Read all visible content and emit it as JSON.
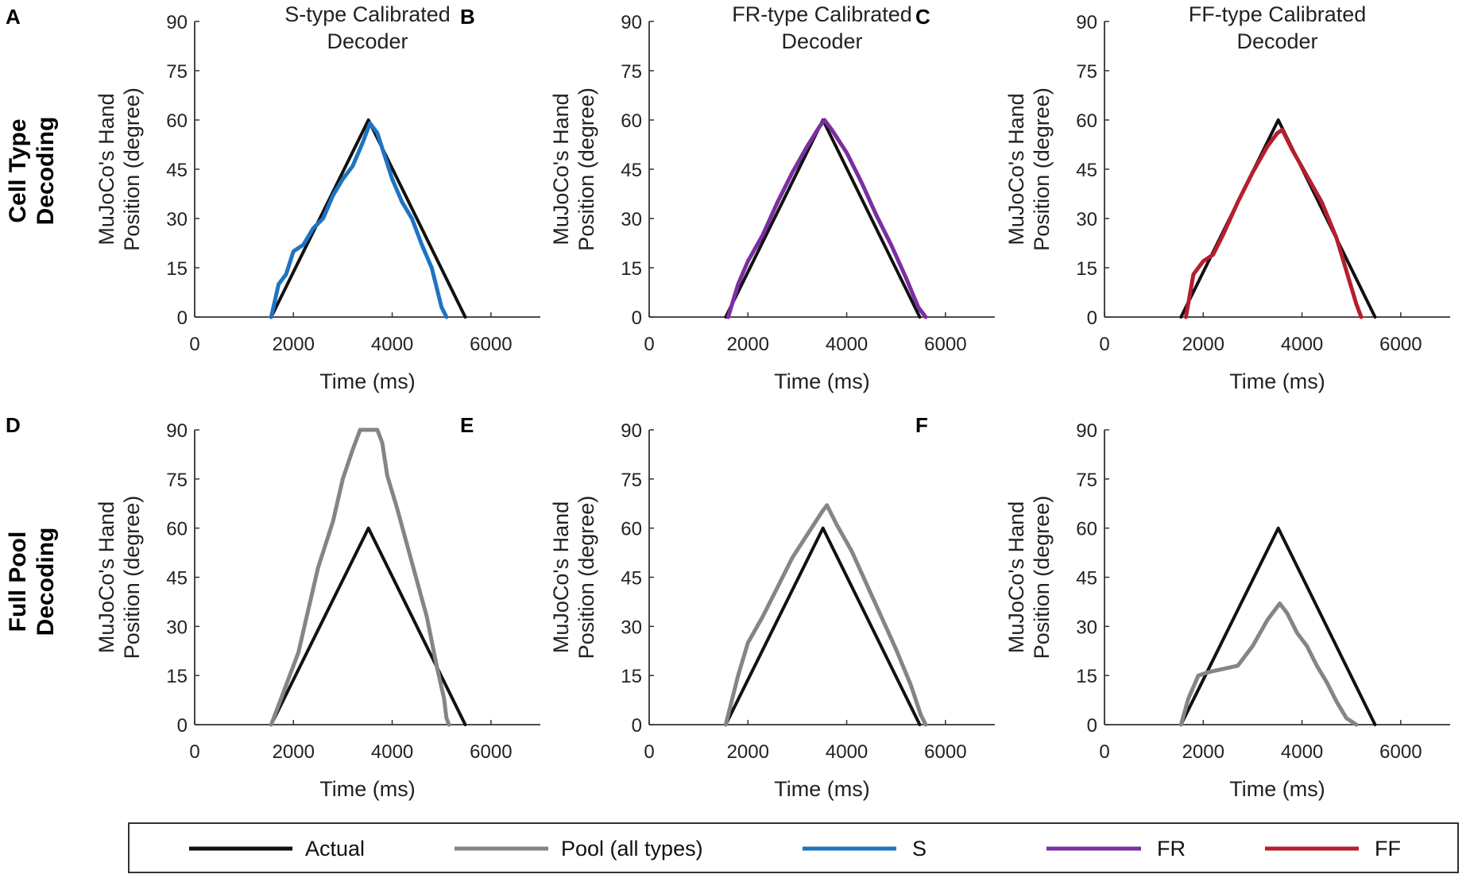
{
  "row_labels": [
    {
      "line1": "Cell Type",
      "line2": "Decoding"
    },
    {
      "line1": "Full Pool",
      "line2": "Decoding"
    }
  ],
  "legend": [
    {
      "name": "Actual",
      "color": "#111111"
    },
    {
      "name": "Pool (all types)",
      "color": "#858585"
    },
    {
      "name": "S",
      "color": "#1f74c2"
    },
    {
      "name": "FR",
      "color": "#7b2fa3"
    },
    {
      "name": "FF",
      "color": "#b51f2e"
    }
  ],
  "chart_data": [
    {
      "panel": "A",
      "type": "line",
      "title": [
        "S-type Calibrated",
        "Decoder"
      ],
      "xlabel": "Time (ms)",
      "ylabel": [
        "MuJoCo's Hand",
        "Position (degree)"
      ],
      "xlim": [
        0,
        7000
      ],
      "ylim": [
        0,
        90
      ],
      "xticks": [
        0,
        2000,
        4000,
        6000
      ],
      "yticks": [
        0,
        15,
        30,
        45,
        60,
        75,
        90
      ],
      "series": [
        {
          "name": "Actual",
          "color": "#111111",
          "x": [
            1550,
            3520,
            5480
          ],
          "y": [
            0,
            60,
            0
          ]
        },
        {
          "name": "S",
          "color": "#1f74c2",
          "x": [
            1550,
            1700,
            1850,
            2000,
            2200,
            2400,
            2600,
            2800,
            3000,
            3200,
            3400,
            3550,
            3700,
            3850,
            4000,
            4200,
            4400,
            4600,
            4800,
            5000,
            5100
          ],
          "y": [
            0,
            10,
            13,
            20,
            22,
            27,
            30,
            37,
            42,
            46,
            53,
            59,
            56,
            49,
            42,
            35,
            30,
            22,
            15,
            3,
            0
          ]
        }
      ]
    },
    {
      "panel": "B",
      "type": "line",
      "title": [
        "FR-type Calibrated",
        "Decoder"
      ],
      "xlabel": "Time (ms)",
      "ylabel": [
        "MuJoCo's Hand",
        "Position (degree)"
      ],
      "xlim": [
        0,
        7000
      ],
      "ylim": [
        0,
        90
      ],
      "xticks": [
        0,
        2000,
        4000,
        6000
      ],
      "yticks": [
        0,
        15,
        30,
        45,
        60,
        75,
        90
      ],
      "series": [
        {
          "name": "Actual",
          "color": "#111111",
          "x": [
            1550,
            3520,
            5480
          ],
          "y": [
            0,
            60,
            0
          ]
        },
        {
          "name": "FR",
          "color": "#7b2fa3",
          "x": [
            1600,
            1800,
            2000,
            2300,
            2600,
            2900,
            3200,
            3450,
            3550,
            3700,
            4000,
            4300,
            4600,
            4900,
            5200,
            5450,
            5600
          ],
          "y": [
            0,
            10,
            17,
            25,
            35,
            44,
            52,
            58,
            60,
            57,
            50,
            41,
            31,
            22,
            12,
            3,
            0
          ]
        }
      ]
    },
    {
      "panel": "C",
      "type": "line",
      "title": [
        "FF-type Calibrated",
        "Decoder"
      ],
      "xlabel": "Time (ms)",
      "ylabel": [
        "MuJoCo's Hand",
        "Position (degree)"
      ],
      "xlim": [
        0,
        7000
      ],
      "ylim": [
        0,
        90
      ],
      "xticks": [
        0,
        2000,
        4000,
        6000
      ],
      "yticks": [
        0,
        15,
        30,
        45,
        60,
        75,
        90
      ],
      "series": [
        {
          "name": "Actual",
          "color": "#111111",
          "x": [
            1550,
            3520,
            5480
          ],
          "y": [
            0,
            60,
            0
          ]
        },
        {
          "name": "FF",
          "color": "#b51f2e",
          "x": [
            1650,
            1800,
            2000,
            2200,
            2400,
            2700,
            3000,
            3300,
            3500,
            3600,
            3800,
            4100,
            4400,
            4700,
            4900,
            5100,
            5200
          ],
          "y": [
            0,
            13,
            17,
            19,
            25,
            35,
            44,
            52,
            56,
            57,
            51,
            43,
            35,
            24,
            14,
            4,
            0
          ]
        }
      ]
    },
    {
      "panel": "D",
      "type": "line",
      "title": [],
      "xlabel": "Time (ms)",
      "ylabel": [
        "MuJoCo's Hand",
        "Position (degree)"
      ],
      "xlim": [
        0,
        7000
      ],
      "ylim": [
        0,
        90
      ],
      "xticks": [
        0,
        2000,
        4000,
        6000
      ],
      "yticks": [
        0,
        15,
        30,
        45,
        60,
        75,
        90
      ],
      "series": [
        {
          "name": "Actual",
          "color": "#111111",
          "x": [
            1550,
            3520,
            5480
          ],
          "y": [
            0,
            60,
            0
          ]
        },
        {
          "name": "Pool (all types)",
          "color": "#858585",
          "x": [
            1550,
            1800,
            2100,
            2300,
            2500,
            2800,
            3000,
            3200,
            3350,
            3700,
            3800,
            3900,
            4100,
            4300,
            4500,
            4700,
            4900,
            5050,
            5100,
            5150
          ],
          "y": [
            0,
            10,
            22,
            35,
            48,
            62,
            75,
            84,
            90,
            90,
            86,
            76,
            66,
            55,
            44,
            33,
            18,
            8,
            2,
            0
          ]
        }
      ]
    },
    {
      "panel": "E",
      "type": "line",
      "title": [],
      "xlabel": "Time (ms)",
      "ylabel": [
        "MuJoCo's Hand",
        "Position (degree)"
      ],
      "xlim": [
        0,
        7000
      ],
      "ylim": [
        0,
        90
      ],
      "xticks": [
        0,
        2000,
        4000,
        6000
      ],
      "yticks": [
        0,
        15,
        30,
        45,
        60,
        75,
        90
      ],
      "series": [
        {
          "name": "Actual",
          "color": "#111111",
          "x": [
            1550,
            3520,
            5480
          ],
          "y": [
            0,
            60,
            0
          ]
        },
        {
          "name": "Pool (all types)",
          "color": "#858585",
          "x": [
            1550,
            1800,
            2000,
            2300,
            2600,
            2900,
            3200,
            3500,
            3600,
            3800,
            4100,
            4400,
            4700,
            5000,
            5300,
            5500,
            5600
          ],
          "y": [
            0,
            15,
            25,
            33,
            42,
            51,
            58,
            65,
            67,
            61,
            53,
            43,
            33,
            23,
            12,
            3,
            0
          ]
        }
      ]
    },
    {
      "panel": "F",
      "type": "line",
      "title": [],
      "xlabel": "Time (ms)",
      "ylabel": [
        "MuJoCo's Hand",
        "Position (degree)"
      ],
      "xlim": [
        0,
        7000
      ],
      "ylim": [
        0,
        90
      ],
      "xticks": [
        0,
        2000,
        4000,
        6000
      ],
      "yticks": [
        0,
        15,
        30,
        45,
        60,
        75,
        90
      ],
      "series": [
        {
          "name": "Actual",
          "color": "#111111",
          "x": [
            1550,
            3520,
            5480
          ],
          "y": [
            0,
            60,
            0
          ]
        },
        {
          "name": "Pool (all types)",
          "color": "#858585",
          "x": [
            1550,
            1700,
            1900,
            2100,
            2400,
            2700,
            3000,
            3300,
            3550,
            3700,
            3900,
            4100,
            4300,
            4500,
            4700,
            4900,
            5100
          ],
          "y": [
            0,
            8,
            15,
            16,
            17,
            18,
            24,
            32,
            37,
            34,
            28,
            24,
            18,
            13,
            7,
            2,
            0
          ]
        }
      ]
    }
  ]
}
